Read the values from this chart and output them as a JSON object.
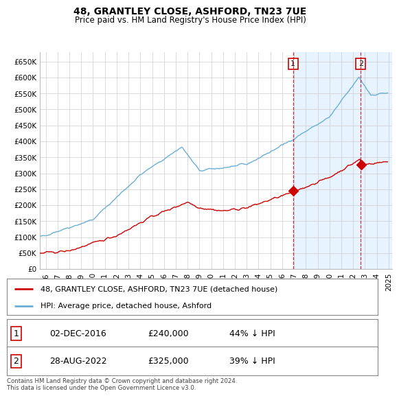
{
  "title": "48, GRANTLEY CLOSE, ASHFORD, TN23 7UE",
  "subtitle": "Price paid vs. HM Land Registry's House Price Index (HPI)",
  "ylabel_ticks": [
    "£0",
    "£50K",
    "£100K",
    "£150K",
    "£200K",
    "£250K",
    "£300K",
    "£350K",
    "£400K",
    "£450K",
    "£500K",
    "£550K",
    "£600K",
    "£650K"
  ],
  "ylim": [
    0,
    680000
  ],
  "ytick_vals": [
    0,
    50000,
    100000,
    150000,
    200000,
    250000,
    300000,
    350000,
    400000,
    450000,
    500000,
    550000,
    600000,
    650000
  ],
  "hpi_color": "#6baed6",
  "hpi_shade_color": "#ddeeff",
  "price_color": "#cc0000",
  "vline_color": "#cc0000",
  "background_color": "#ffffff",
  "grid_color": "#cccccc",
  "sale1_date": 2016.92,
  "sale1_price": 240000,
  "sale1_label": "1",
  "sale2_date": 2022.65,
  "sale2_price": 325000,
  "sale2_label": "2",
  "legend_line1": "48, GRANTLEY CLOSE, ASHFORD, TN23 7UE (detached house)",
  "legend_line2": "HPI: Average price, detached house, Ashford",
  "table_row1": [
    "1",
    "02-DEC-2016",
    "£240,000",
    "44% ↓ HPI"
  ],
  "table_row2": [
    "2",
    "28-AUG-2022",
    "£325,000",
    "39% ↓ HPI"
  ],
  "footer": "Contains HM Land Registry data © Crown copyright and database right 2024.\nThis data is licensed under the Open Government Licence v3.0.",
  "xstart": 1995.5,
  "xend": 2025.3
}
